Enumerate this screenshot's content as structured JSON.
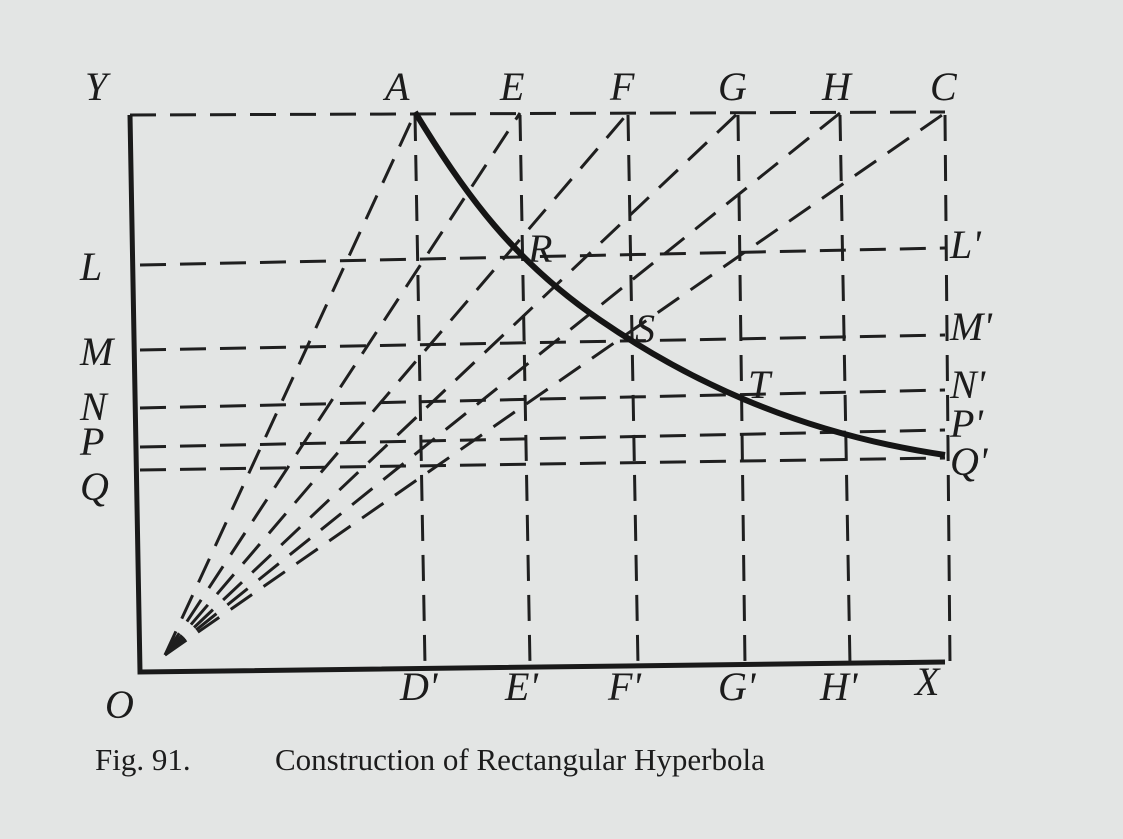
{
  "figure": {
    "axes": {
      "y": "Y",
      "origin": "O",
      "x": "X"
    },
    "top": [
      "A",
      "E",
      "F",
      "G",
      "H",
      "C"
    ],
    "left": [
      "L",
      "M",
      "N",
      "P",
      "Q"
    ],
    "bottom": [
      "D'",
      "E'",
      "F'",
      "G'",
      "H'"
    ],
    "right": [
      "L'",
      "M'",
      "N'",
      "P'",
      "Q'"
    ],
    "curve": [
      "R",
      "S",
      "T"
    ]
  },
  "caption": {
    "number": "Fig. 91.",
    "title": "Construction of Rectangular Hyperbola"
  }
}
